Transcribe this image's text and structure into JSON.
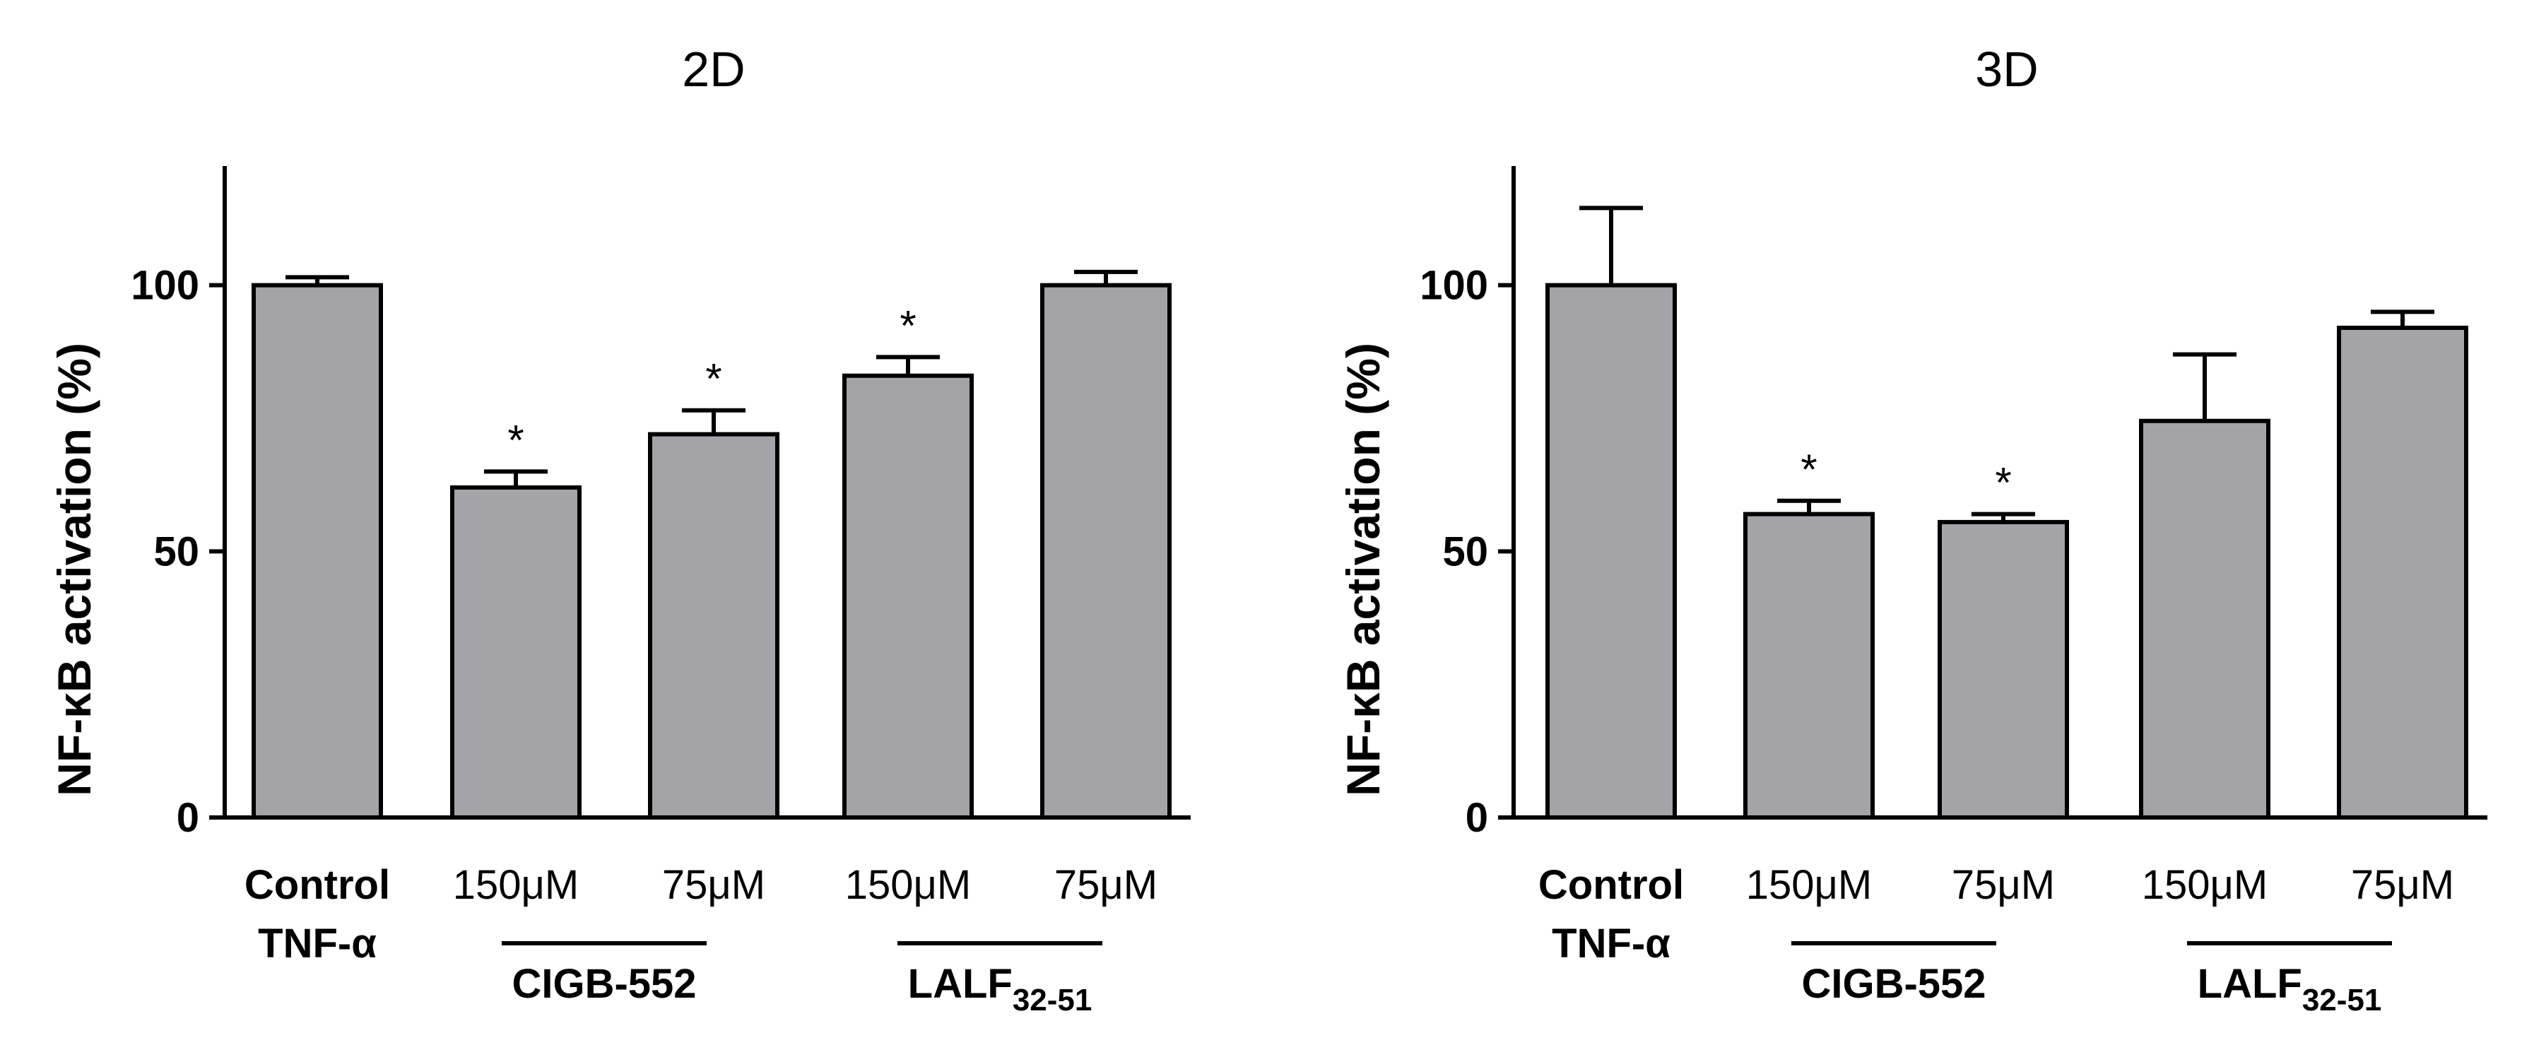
{
  "chart_data": [
    {
      "type": "bar",
      "title": "2D",
      "ylabel": "NF-κB activation (%)",
      "xlabel": "",
      "ylim": [
        0,
        120
      ],
      "yticks": [
        "0",
        "50",
        "100"
      ],
      "grid": false,
      "categories": [
        {
          "line1": "Control",
          "line2": "TNF-α",
          "bold": true
        },
        {
          "line1": "150μM",
          "line2": "",
          "bold": false
        },
        {
          "line1": "75μM",
          "line2": "",
          "bold": false
        },
        {
          "line1": "150μM",
          "line2": "",
          "bold": false
        },
        {
          "line1": "75μM",
          "line2": "",
          "bold": false
        }
      ],
      "values": [
        100,
        62,
        72,
        83,
        100
      ],
      "errors": [
        1.5,
        3,
        4.5,
        3.5,
        2.5
      ],
      "significance": [
        "",
        "*",
        "*",
        "*",
        ""
      ],
      "groups": [
        {
          "label": "CIGB-552",
          "sub": "",
          "from": 1,
          "to": 2
        },
        {
          "label": "LALF",
          "sub": "32-51",
          "from": 3,
          "to": 4
        }
      ],
      "bar_color": "#a3a3a8"
    },
    {
      "type": "bar",
      "title": "3D",
      "ylabel": "NF-κB activation (%)",
      "xlabel": "",
      "ylim": [
        0,
        120
      ],
      "yticks": [
        "0",
        "50",
        "100"
      ],
      "grid": false,
      "categories": [
        {
          "line1": "Control",
          "line2": "TNF-α",
          "bold": true
        },
        {
          "line1": "150μM",
          "line2": "",
          "bold": false
        },
        {
          "line1": "75μM",
          "line2": "",
          "bold": false
        },
        {
          "line1": "150μM",
          "line2": "",
          "bold": false
        },
        {
          "line1": "75μM",
          "line2": "",
          "bold": false
        }
      ],
      "values": [
        100,
        57,
        55.5,
        74.5,
        92
      ],
      "errors": [
        14.5,
        2.5,
        1.5,
        12.5,
        3
      ],
      "significance": [
        "",
        "*",
        "*",
        "",
        ""
      ],
      "groups": [
        {
          "label": "CIGB-552",
          "sub": "",
          "from": 1,
          "to": 2
        },
        {
          "label": "LALF",
          "sub": "32-51",
          "from": 3,
          "to": 4
        }
      ],
      "bar_color": "#a3a3a8"
    }
  ]
}
